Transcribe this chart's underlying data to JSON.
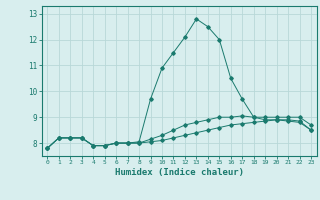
{
  "x": [
    0,
    1,
    2,
    3,
    4,
    5,
    6,
    7,
    8,
    9,
    10,
    11,
    12,
    13,
    14,
    15,
    16,
    17,
    18,
    19,
    20,
    21,
    22,
    23
  ],
  "line1": [
    7.8,
    8.2,
    8.2,
    8.2,
    7.9,
    7.9,
    8.0,
    8.0,
    8.0,
    8.05,
    8.1,
    8.2,
    8.3,
    8.4,
    8.5,
    8.6,
    8.7,
    8.75,
    8.8,
    8.85,
    8.9,
    8.9,
    8.85,
    8.5
  ],
  "line2": [
    7.8,
    8.2,
    8.2,
    8.2,
    7.9,
    7.9,
    8.0,
    8.0,
    8.0,
    8.15,
    8.3,
    8.5,
    8.7,
    8.8,
    8.9,
    9.0,
    9.0,
    9.05,
    9.0,
    9.0,
    9.0,
    9.0,
    9.0,
    8.7
  ],
  "line3": [
    7.8,
    8.2,
    8.2,
    8.2,
    7.9,
    7.9,
    8.0,
    8.0,
    8.05,
    9.7,
    10.9,
    11.5,
    12.1,
    12.8,
    12.5,
    12.0,
    10.5,
    9.7,
    9.0,
    8.9,
    8.9,
    8.85,
    8.8,
    8.5
  ],
  "line_color": "#1a7a6e",
  "bg_color": "#d8eeee",
  "grid_color": "#b8d8d8",
  "xlabel": "Humidex (Indice chaleur)",
  "xlim": [
    -0.5,
    23.5
  ],
  "ylim": [
    7.5,
    13.3
  ],
  "yticks": [
    8,
    9,
    10,
    11,
    12,
    13
  ],
  "xticks": [
    0,
    1,
    2,
    3,
    4,
    5,
    6,
    7,
    8,
    9,
    10,
    11,
    12,
    13,
    14,
    15,
    16,
    17,
    18,
    19,
    20,
    21,
    22,
    23
  ]
}
